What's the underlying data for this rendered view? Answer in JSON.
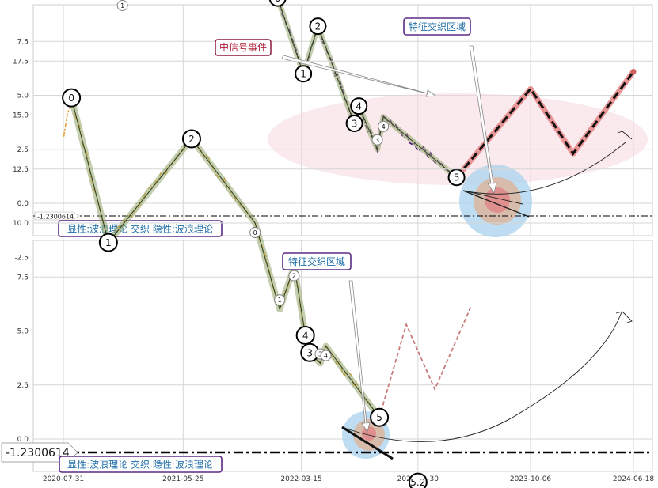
{
  "chart_data": [
    {
      "type": "line",
      "panel": "top",
      "ylim": [
        -3,
        18
      ],
      "yticks": [
        "17.5",
        "15.0",
        "12.5",
        "10.0",
        "7.5",
        "5.0",
        "2.5",
        "0.0",
        "-2.5"
      ],
      "grid": true,
      "colors": {
        "price": "#4b0082",
        "wave": "#556b2f",
        "highlight": "#e0707a",
        "forecast": "#111111"
      },
      "annotations": {
        "region_label": "特征交织区域",
        "event_label": "中信号事件",
        "footer_label": "显性:波浪理论 交织 隐性:波浪理论",
        "baseline_label": "-1.2300614"
      },
      "baseline": -1.2300614,
      "wave_points": [
        {
          "x": "2020-10-15",
          "y": 15.6,
          "label": "0"
        },
        {
          "x": "2020-12-25",
          "y": 9.6,
          "label": "1"
        },
        {
          "x": "2021-07-20",
          "y": 13.8,
          "label": "2"
        },
        {
          "x": "2022-01-15",
          "y": 9.5,
          "label": "0"
        },
        {
          "x": "2022-03-20",
          "y": 6.0,
          "label": "1"
        },
        {
          "x": "2022-04-25",
          "y": 8.2,
          "label": "2"
        },
        {
          "x": "2022-07-25",
          "y": 3.7,
          "label": "3"
        },
        {
          "x": "2022-08-05",
          "y": 4.5,
          "label": "4"
        },
        {
          "x": "2022-09-20",
          "y": 2.5,
          "label": "3"
        },
        {
          "x": "2022-10-05",
          "y": 4.0,
          "label": "4"
        },
        {
          "x": "2023-04-05",
          "y": 1.2,
          "label": "5"
        },
        {
          "x": "2023-06-15",
          "y": -1.5,
          "label": "5.2"
        }
      ],
      "forecast": {
        "x": [
          "2023-04-05",
          "2023-10-06",
          "2024-01-20",
          "2024-06-18"
        ],
        "y": [
          1.2,
          5.3,
          2.3,
          6.1
        ]
      }
    },
    {
      "type": "line",
      "panel": "bottom",
      "ylim": [
        -3,
        18
      ],
      "yticks": [
        "17.5",
        "15.0",
        "12.5",
        "10.0",
        "7.5",
        "5.0",
        "2.5",
        "0.0",
        "-2.5"
      ],
      "xticks": [
        "2020-07-31",
        "2021-05-25",
        "2022-03-15",
        "2022-12-30",
        "2023-10-06",
        "2024-06-18"
      ],
      "grid": true,
      "colors": {
        "price": "#e8a33a",
        "wave": "#556b2f",
        "highlight": "#e0707a",
        "forecast": "#111111"
      },
      "annotations": {
        "region_label": "特征交织区域",
        "footer_label": "显性:波浪理论 交织 隐性:波浪理论",
        "baseline_label": "-1.2300614"
      },
      "baseline": -1.2300614,
      "wave_points": [
        {
          "x": "2020-08-20",
          "y": 15.8,
          "label": "0"
        },
        {
          "x": "2020-11-20",
          "y": 9.1,
          "label": "1"
        },
        {
          "x": "2021-06-15",
          "y": 13.9,
          "label": "2"
        },
        {
          "x": "2021-11-20",
          "y": 10.0,
          "label": "0"
        },
        {
          "x": "2022-01-20",
          "y": 6.0,
          "label": "1"
        },
        {
          "x": "2022-02-25",
          "y": 8.0,
          "label": "2"
        },
        {
          "x": "2022-03-25",
          "y": 4.8,
          "label": "4"
        },
        {
          "x": "2022-04-05",
          "y": 4.0,
          "label": "3"
        },
        {
          "x": "2022-05-01",
          "y": 3.5,
          "label": "3"
        },
        {
          "x": "2022-05-15",
          "y": 4.3,
          "label": "4"
        },
        {
          "x": "2022-09-25",
          "y": 1.0,
          "label": "5"
        },
        {
          "x": "2022-12-30",
          "y": -2.0,
          "label": "5.2"
        }
      ],
      "forecast": {
        "x": [
          "2022-09-25",
          "2022-12-01",
          "2023-02-10",
          "2023-05-10"
        ],
        "y": [
          1.0,
          5.3,
          2.3,
          6.1
        ]
      }
    }
  ]
}
